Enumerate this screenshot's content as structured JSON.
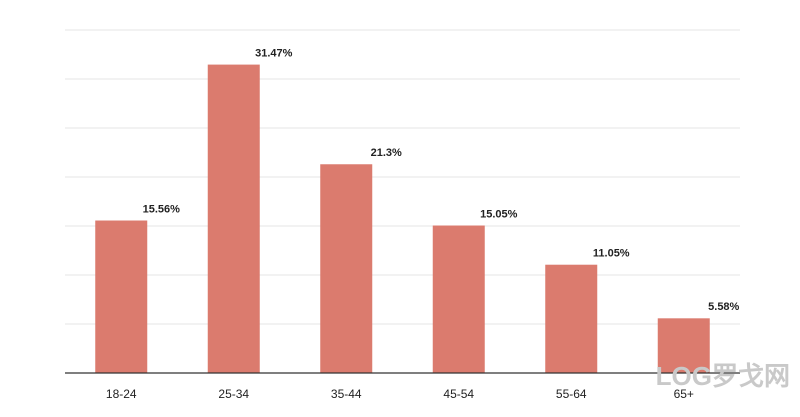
{
  "chart_data": {
    "type": "bar",
    "categories": [
      "18-24",
      "25-34",
      "35-44",
      "45-54",
      "55-64",
      "65+"
    ],
    "values": [
      15.56,
      31.47,
      21.3,
      15.05,
      11.05,
      5.58
    ],
    "value_labels": [
      "15.56%",
      "31.47%",
      "21.3%",
      "15.05%",
      "11.05%",
      "5.58%"
    ],
    "color": "#db7b6e",
    "ylim": [
      0,
      35
    ],
    "yticks": [
      0,
      5,
      10,
      15,
      20,
      25,
      30,
      35
    ],
    "grid": true,
    "watermark": "LOG罗戈网"
  }
}
